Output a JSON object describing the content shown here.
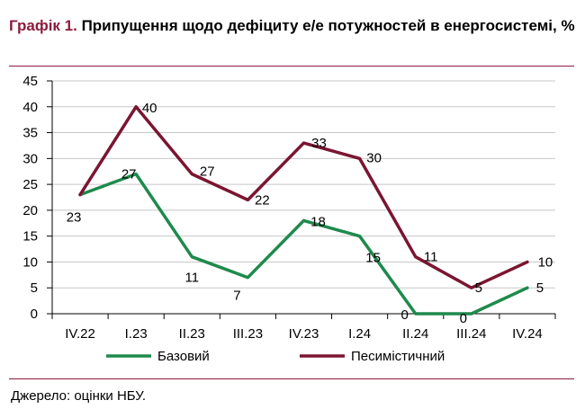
{
  "title": {
    "prefix": "Графік 1.",
    "text": "Припущення щодо дефіциту е/е потужностей в енергосистемі, %"
  },
  "source": "Джерело: оцінки НБУ.",
  "colors": {
    "base": "#1E8A4C",
    "pessimistic": "#7B1531",
    "accent": "#8B1C3C",
    "grid": "#C8C8C8"
  },
  "chart_data": {
    "type": "line",
    "title": "Припущення щодо дефіциту е/е потужностей в енергосистемі, %",
    "categories": [
      "IV.22",
      "I.23",
      "II.23",
      "III.23",
      "IV.23",
      "I.24",
      "II.24",
      "III.24",
      "IV.24"
    ],
    "ylim": [
      0,
      45
    ],
    "yticks": [
      0,
      5,
      10,
      15,
      20,
      25,
      30,
      35,
      40,
      45
    ],
    "grid": true,
    "legend": "bottom",
    "series": [
      {
        "name": "Базовий",
        "key": "base",
        "values": [
          23,
          27,
          11,
          7,
          18,
          15,
          0,
          0,
          5
        ],
        "labels": [
          "23",
          "27",
          "11",
          "7",
          "18",
          "15",
          "0",
          "0",
          "5"
        ]
      },
      {
        "name": "Песимістичний",
        "key": "pessimistic",
        "values": [
          23,
          40,
          27,
          22,
          33,
          30,
          11,
          5,
          10
        ],
        "labels": [
          "",
          "40",
          "27",
          "22",
          "33",
          "30",
          "11",
          "5",
          "10"
        ]
      }
    ]
  }
}
